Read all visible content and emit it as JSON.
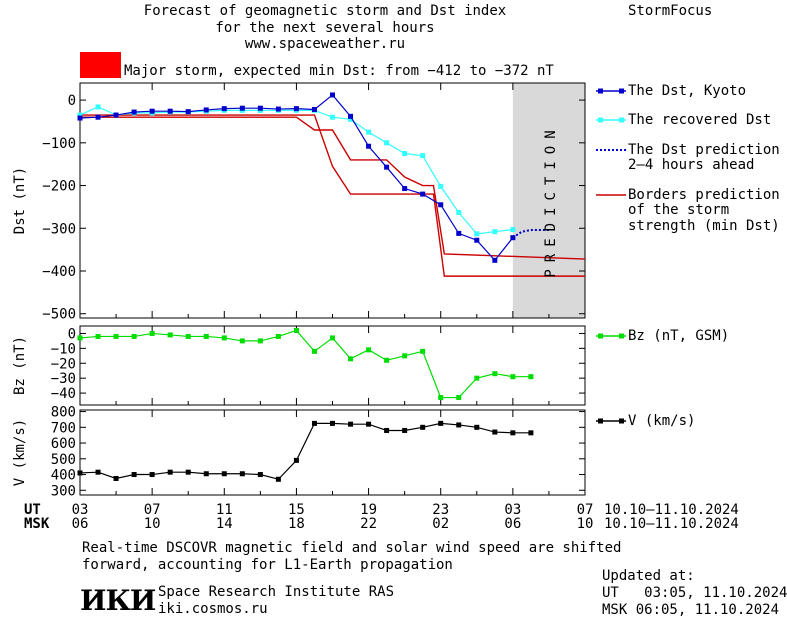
{
  "header": {
    "title_line1": "Forecast of geomagnetic storm and Dst index",
    "title_line2": "for the next several hours",
    "website": "www.spaceweather.ru",
    "brand": "StormFocus"
  },
  "alert": {
    "color": "#ff0000",
    "text": "Major storm, expected min Dst: from −412 to −372 nT"
  },
  "prediction_label": "PREDICTION",
  "legend": {
    "dst_kyoto": "The Dst, Kyoto",
    "recovered_dst": "The recovered Dst",
    "dst_prediction_line1": "The Dst prediction",
    "dst_prediction_line2": "2–4 hours ahead",
    "borders_line1": "Borders prediction",
    "borders_line2": "of the storm",
    "borders_line3": "strength (min Dst)",
    "bz": "Bz (nT, GSM)",
    "v": "V (km/s)"
  },
  "axis_labels": {
    "ut": "UT",
    "msk": "MSK",
    "ut_range": "10.10–11.10.2024",
    "msk_range": "10.10–11.10.2024"
  },
  "footer": {
    "note_line1": "Real-time DSCOVR magnetic field and solar wind speed are shifted",
    "note_line2": "forward, accounting for L1-Earth propagation",
    "logo_text": "ИКИ",
    "institute": "Space Research Institute RAS",
    "site": "iki.cosmos.ru",
    "updated_label": "Updated at:",
    "updated_ut": "UT   03:05, 11.10.2024",
    "updated_msk": "MSK 06:05, 11.10.2024"
  },
  "colors": {
    "dst_kyoto": "#0000cc",
    "recovered_dst": "#33ffff",
    "prediction": "#0000cc",
    "borders": "#cc0000",
    "bz": "#00dd00",
    "v": "#000000",
    "prediction_band": "#d9d9d9"
  },
  "chart_data": [
    {
      "type": "line",
      "ylabel": "Dst (nT)",
      "ylim": [
        -510,
        40
      ],
      "yticks": [
        0,
        -100,
        -200,
        -300,
        -400,
        -500
      ],
      "ytick_labels": [
        "0",
        "−100",
        "−200",
        "−300",
        "−400",
        "−500"
      ],
      "x_unit": "hours since 03 UT 10.10.2024",
      "xlim": [
        0,
        28
      ],
      "prediction_region": [
        24,
        28
      ],
      "series": [
        {
          "name": "The Dst, Kyoto",
          "x": [
            0,
            1,
            2,
            3,
            4,
            5,
            6,
            7,
            8,
            9,
            10,
            11,
            12,
            13,
            14,
            15,
            16,
            17,
            18,
            19,
            20,
            21,
            22,
            23,
            24
          ],
          "values": [
            -42,
            -40,
            -35,
            -28,
            -26,
            -26,
            -27,
            -23,
            -20,
            -19,
            -19,
            -21,
            -20,
            -22,
            12,
            -38,
            -108,
            -157,
            -207,
            -220,
            -245,
            -312,
            -328,
            -375,
            -322
          ]
        },
        {
          "name": "The recovered Dst",
          "x": [
            0,
            1,
            2,
            3,
            4,
            5,
            6,
            7,
            8,
            9,
            10,
            11,
            12,
            13,
            14,
            15,
            16,
            17,
            18,
            19,
            20,
            21,
            22,
            23,
            24
          ],
          "values": [
            -35,
            -16,
            -35,
            -30,
            -30,
            -28,
            -28,
            -26,
            -24,
            -24,
            -24,
            -24,
            -24,
            -24,
            -40,
            -45,
            -75,
            -100,
            -125,
            -130,
            -202,
            -263,
            -313,
            -308,
            -303
          ]
        },
        {
          "name": "The Dst prediction 2–4 hours ahead",
          "x": [
            24,
            24.5,
            25,
            25.5,
            26
          ],
          "values": [
            -322,
            -308,
            -304,
            -304,
            -304
          ]
        },
        {
          "name": "Borders prediction of the storm strength (min Dst)",
          "x": [
            0,
            12,
            13,
            14,
            15,
            17,
            18,
            19,
            19.6,
            20.2,
            28
          ],
          "values": [
            -40,
            -40,
            -70,
            -70,
            -140,
            -140,
            -180,
            -200,
            -200,
            -360,
            -372
          ]
        },
        {
          "name": "Borders prediction of the storm strength (min Dst) lower",
          "x": [
            0,
            12,
            13,
            14,
            15,
            19,
            19.6,
            20.2,
            28
          ],
          "values": [
            -35,
            -35,
            -35,
            -155,
            -220,
            -220,
            -220,
            -412,
            -412
          ]
        }
      ]
    },
    {
      "type": "line",
      "ylabel": "Bz (nT)",
      "ylim": [
        -48,
        5
      ],
      "yticks": [
        0,
        -10,
        -20,
        -30,
        -40
      ],
      "ytick_labels": [
        "0",
        "−10",
        "−20",
        "−30",
        "−40"
      ],
      "xlim": [
        0,
        28
      ],
      "series": [
        {
          "name": "Bz (nT, GSM)",
          "x": [
            0,
            1,
            2,
            3,
            4,
            5,
            6,
            7,
            8,
            9,
            10,
            11,
            12,
            13,
            14,
            15,
            16,
            17,
            18,
            19,
            20,
            21,
            22,
            23,
            24,
            25
          ],
          "values": [
            -3,
            -2,
            -2,
            -2,
            0,
            -1,
            -2,
            -2,
            -3,
            -5,
            -5,
            -2,
            2,
            -12,
            -3,
            -17,
            -11,
            -18,
            -15,
            -12,
            -43,
            -43,
            -30,
            -27,
            -29,
            -29
          ]
        }
      ]
    },
    {
      "type": "line",
      "ylabel": "V (km/s)",
      "ylim": [
        270,
        810
      ],
      "yticks": [
        300,
        400,
        500,
        600,
        700,
        800
      ],
      "ytick_labels": [
        "300",
        "400",
        "500",
        "600",
        "700",
        "800"
      ],
      "xlim": [
        0,
        28
      ],
      "x_tick_labels_ut": [
        "03",
        "07",
        "11",
        "15",
        "19",
        "23",
        "03",
        "07"
      ],
      "x_tick_labels_msk": [
        "06",
        "10",
        "14",
        "18",
        "22",
        "02",
        "06",
        "10"
      ],
      "series": [
        {
          "name": "V (km/s)",
          "x": [
            0,
            1,
            2,
            3,
            4,
            5,
            6,
            7,
            8,
            9,
            10,
            11,
            12,
            13,
            14,
            15,
            16,
            17,
            18,
            19,
            20,
            21,
            22,
            23,
            24,
            25
          ],
          "values": [
            410,
            415,
            375,
            400,
            400,
            415,
            415,
            405,
            405,
            405,
            400,
            370,
            490,
            725,
            725,
            720,
            720,
            680,
            680,
            700,
            725,
            715,
            700,
            670,
            665,
            665
          ]
        }
      ]
    }
  ]
}
